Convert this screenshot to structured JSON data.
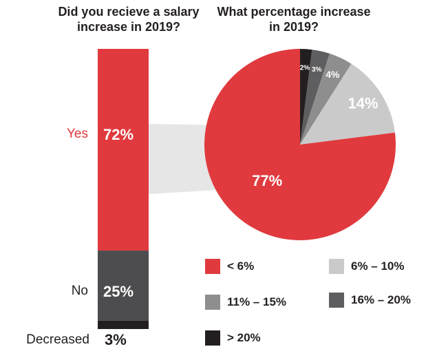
{
  "chart_data": [
    {
      "type": "bar",
      "title": "Did you recieve a salary increase in 2019?",
      "categories": [
        "Yes",
        "No",
        "Decreased"
      ],
      "values": [
        72,
        25,
        3
      ],
      "value_labels": [
        "72%",
        "25%",
        "3%"
      ],
      "colors": [
        "#e03a3e",
        "#4d4d4f",
        "#231f20"
      ],
      "stacked": true
    },
    {
      "type": "pie",
      "title": "What percentage increase in 2019?",
      "categories": [
        "< 6%",
        "6% – 10%",
        "11% – 15%",
        "16% – 20%",
        "> 20%"
      ],
      "values": [
        77,
        14,
        4,
        3,
        2
      ],
      "value_labels": [
        "77%",
        "14%",
        "4%",
        "3%",
        "2%"
      ],
      "colors": [
        "#e03a3e",
        "#cacaca",
        "#8e8e8e",
        "#5e5e60",
        "#231f20"
      ],
      "legend": "bottom"
    }
  ]
}
